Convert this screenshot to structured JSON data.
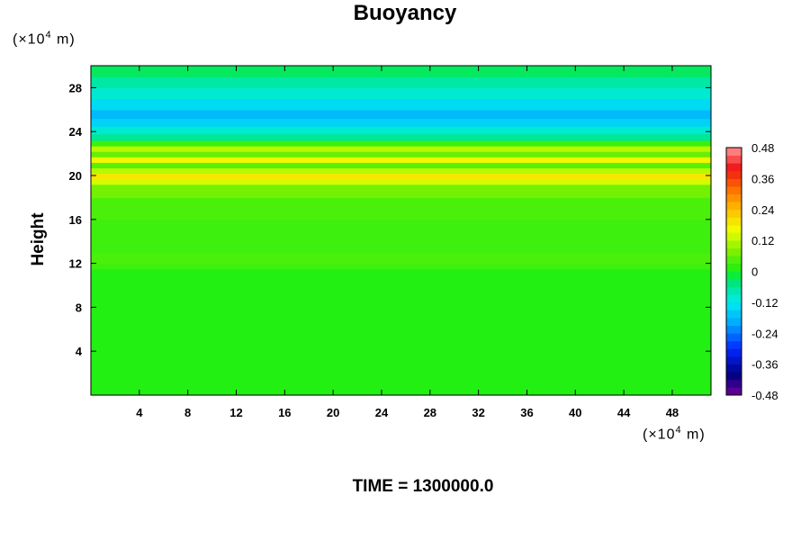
{
  "chart_data": {
    "type": "heatmap",
    "title": "Buoyancy",
    "ylabel": "Height",
    "y_unit_prefix": "(×10",
    "y_unit_exp": "4",
    "y_unit_suffix": " m)",
    "x_unit_prefix": "(×10",
    "x_unit_exp": "4",
    "x_unit_suffix": " m)",
    "time_label": "TIME = 1300000.0",
    "xlim": [
      0,
      51.2
    ],
    "ylim": [
      0,
      30
    ],
    "x_ticks": [
      4,
      8,
      12,
      16,
      20,
      24,
      28,
      32,
      36,
      40,
      44,
      48
    ],
    "y_ticks": [
      4,
      8,
      12,
      16,
      20,
      24,
      28
    ],
    "colorbar": {
      "range": [
        -0.48,
        0.48
      ],
      "tick_values": [
        -0.48,
        -0.36,
        -0.24,
        -0.12,
        0,
        0.12,
        0.24,
        0.36,
        0.48
      ],
      "tick_labels": [
        "-0.48",
        "-0.36",
        "-0.24",
        "-0.12",
        "0",
        "0.12",
        "0.24",
        "0.36",
        "0.48"
      ]
    },
    "profile": {
      "heights": [
        0,
        11,
        11.5,
        12,
        13,
        16,
        18,
        19.2,
        19.7,
        20.2,
        20.7,
        21.2,
        21.7,
        22.2,
        22.7,
        23.2,
        23.8,
        24.5,
        25.2,
        26,
        27,
        28,
        29,
        30
      ],
      "values": [
        0.01,
        0.01,
        0.03,
        0.04,
        0.03,
        0.04,
        0.07,
        0.14,
        0.19,
        0.12,
        0.05,
        0.17,
        0.06,
        0.12,
        0.03,
        -0.06,
        -0.1,
        -0.15,
        -0.18,
        -0.14,
        -0.1,
        -0.07,
        -0.03,
        0.0
      ]
    }
  }
}
